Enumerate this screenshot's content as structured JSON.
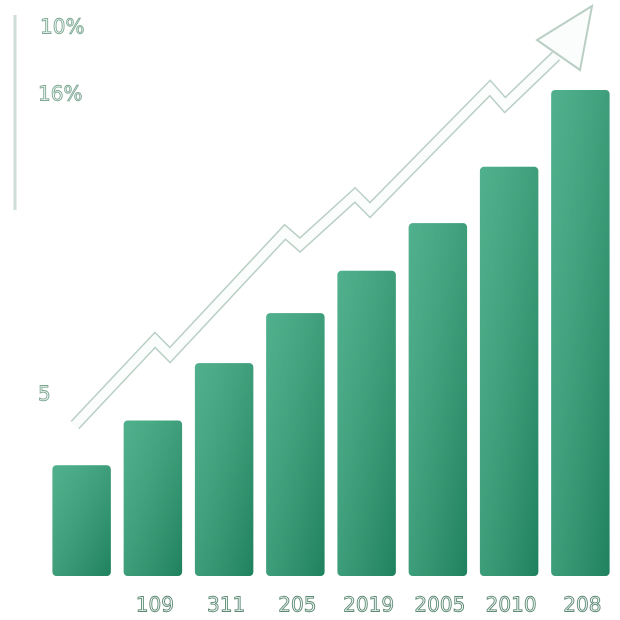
{
  "chart_data": {
    "type": "bar",
    "annotations": [
      "10%",
      "16%",
      "5"
    ],
    "categories": [
      null,
      "109",
      "311",
      "205",
      "2019",
      "2005",
      "2010",
      "208"
    ],
    "values": [
      22.8,
      32,
      43.8,
      54.1,
      62.8,
      72.6,
      84.2,
      100
    ],
    "color": "#2a9f74",
    "ylim": [
      0,
      100
    ]
  }
}
